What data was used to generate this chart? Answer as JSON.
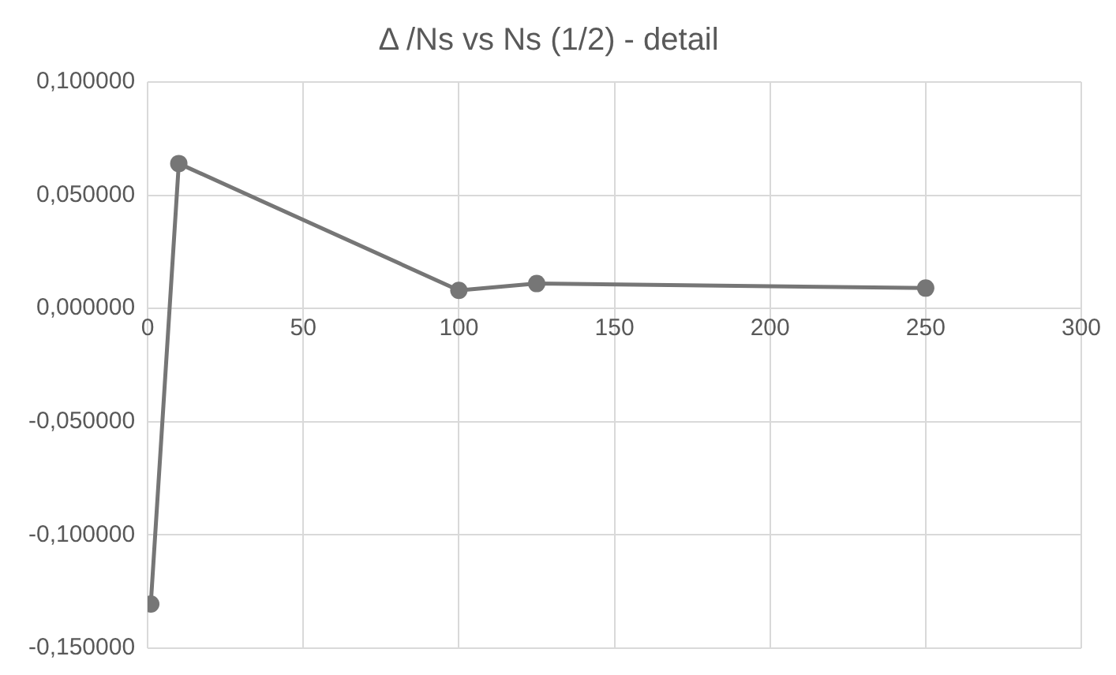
{
  "chart_data": {
    "type": "line",
    "title": "Δ /Ns vs Ns (1/2) - detail",
    "x": [
      1,
      10,
      100,
      125,
      250
    ],
    "series": [
      {
        "color": "#767676",
        "values": [
          -0.1305,
          0.064,
          0.008,
          0.011,
          0.009
        ]
      }
    ],
    "xlim": [
      0,
      300
    ],
    "xticks": [
      0,
      50,
      100,
      150,
      200,
      250,
      300
    ],
    "ylim": [
      -0.15,
      0.1
    ],
    "yticks": [
      {
        "value": -0.15,
        "label": "-0,150000"
      },
      {
        "value": -0.1,
        "label": "-0,100000"
      },
      {
        "value": -0.05,
        "label": "-0,050000"
      },
      {
        "value": 0,
        "label": "0,000000"
      },
      {
        "value": 0.05,
        "label": "0,050000"
      },
      {
        "value": 0.1,
        "label": "0,100000"
      }
    ],
    "grid": true,
    "marker": "circle",
    "line_style": "solid",
    "legend": false
  }
}
